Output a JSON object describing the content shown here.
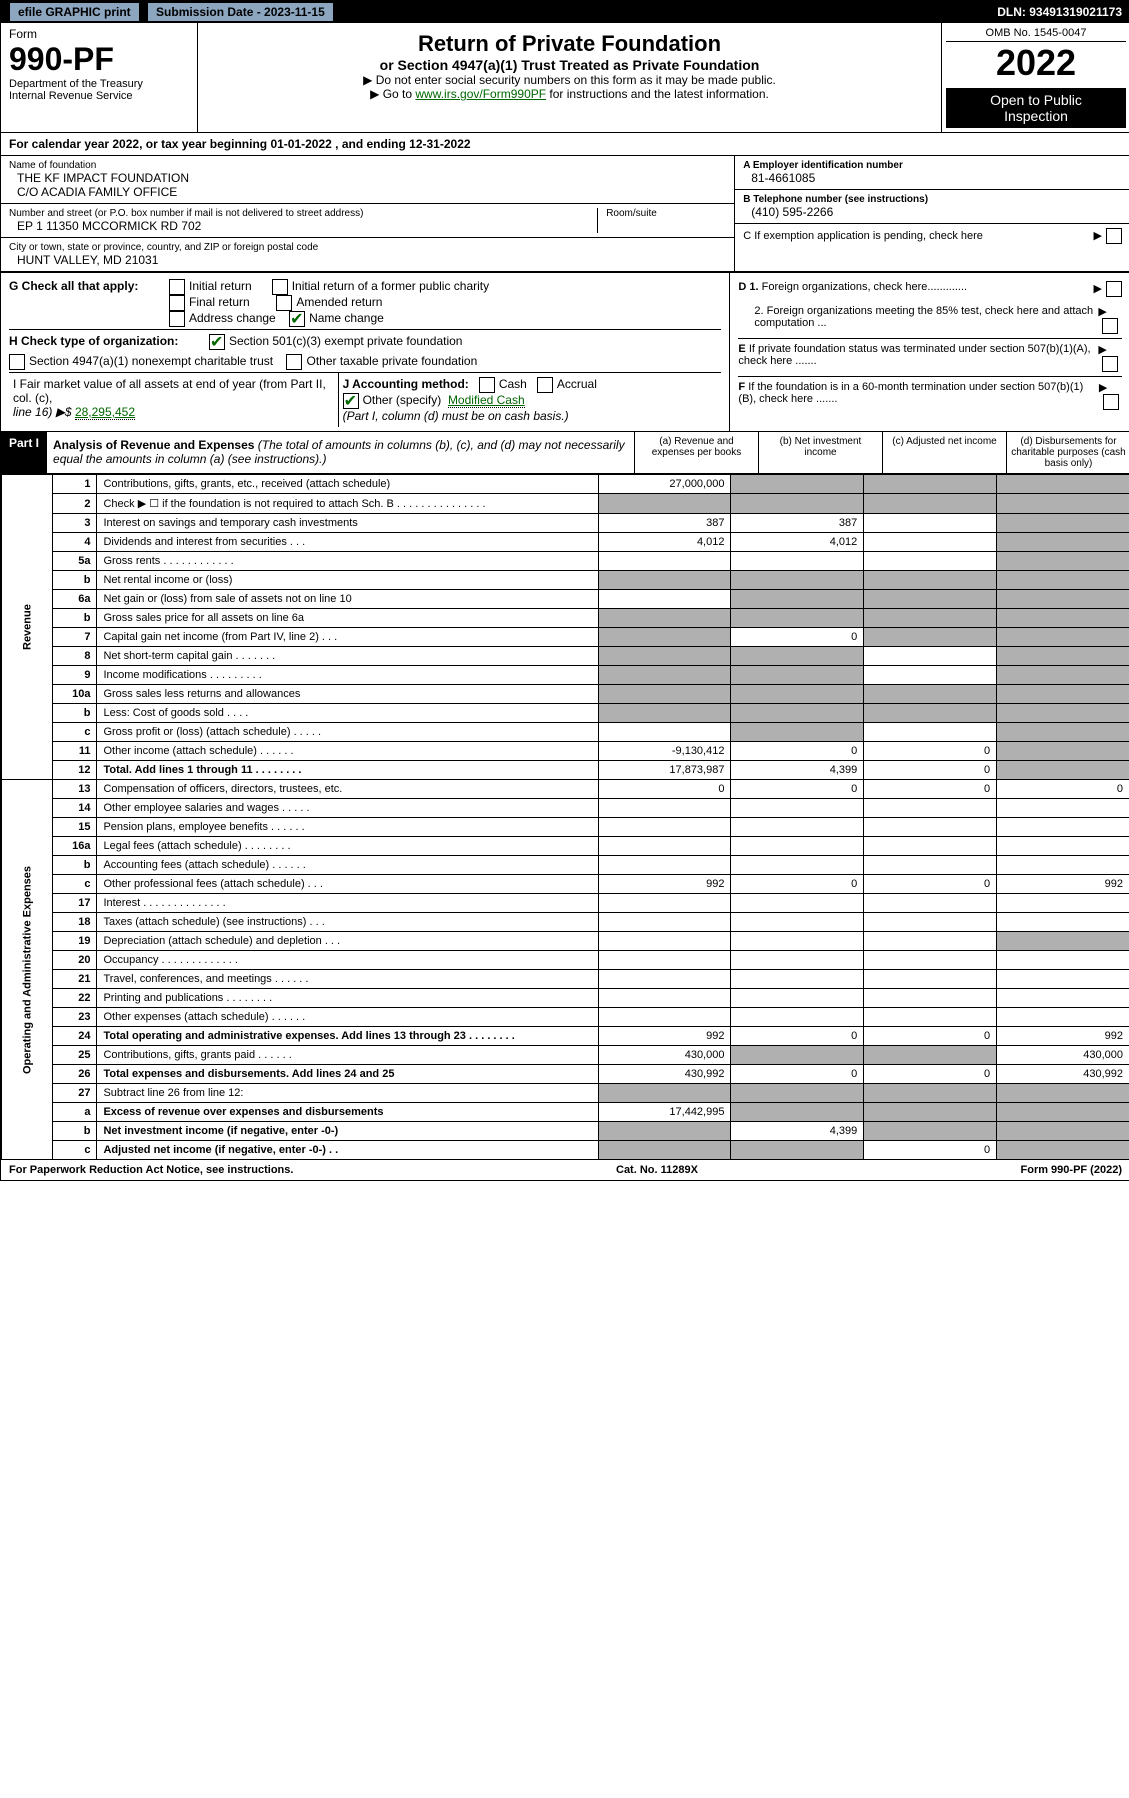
{
  "top_bar": {
    "efile": "efile GRAPHIC print",
    "submission_label": "Submission Date - 2023-11-15",
    "dln": "DLN: 93491319021173"
  },
  "header": {
    "form_label": "Form",
    "form_num": "990-PF",
    "dept1": "Department of the Treasury",
    "dept2": "Internal Revenue Service",
    "title": "Return of Private Foundation",
    "subtitle": "or Section 4947(a)(1) Trust Treated as Private Foundation",
    "inst1": "▶ Do not enter social security numbers on this form as it may be made public.",
    "inst2_pre": "▶ Go to ",
    "inst2_link": "www.irs.gov/Form990PF",
    "inst2_post": " for instructions and the latest information.",
    "omb": "OMB No. 1545-0047",
    "year": "2022",
    "inspection1": "Open to Public",
    "inspection2": "Inspection"
  },
  "cal_year": "For calendar year 2022, or tax year beginning 01-01-2022        , and ending 12-31-2022",
  "info": {
    "name_lbl": "Name of foundation",
    "name_val1": "THE KF IMPACT FOUNDATION",
    "name_val2": "C/O ACADIA FAMILY OFFICE",
    "ein_lbl": "A Employer identification number",
    "ein_val": "81-4661085",
    "addr_lbl": "Number and street (or P.O. box number if mail is not delivered to street address)",
    "addr_val": "EP 1 11350 MCCORMICK RD 702",
    "room_lbl": "Room/suite",
    "tel_lbl": "B Telephone number (see instructions)",
    "tel_val": "(410) 595-2266",
    "city_lbl": "City or town, state or province, country, and ZIP or foreign postal code",
    "city_val": "HUNT VALLEY, MD  21031",
    "c_lbl": "C If exemption application is pending, check here",
    "d1_lbl": "D 1. Foreign organizations, check here.............",
    "d2_lbl": "2. Foreign organizations meeting the 85% test, check here and attach computation ...",
    "e_lbl": "E If private foundation status was terminated under section 507(b)(1)(A), check here .......",
    "f_lbl": "F If the foundation is in a 60-month termination under section 507(b)(1)(B), check here .......",
    "g_lbl": "G Check all that apply:",
    "g_opts": {
      "initial": "Initial return",
      "initial_former": "Initial return of a former public charity",
      "final": "Final return",
      "amended": "Amended return",
      "address": "Address change",
      "name": "Name change"
    },
    "h_lbl": "H Check type of organization:",
    "h_501": "Section 501(c)(3) exempt private foundation",
    "h_4947": "Section 4947(a)(1) nonexempt charitable trust",
    "h_other": "Other taxable private foundation",
    "i_lbl": "I Fair market value of all assets at end of year (from Part II, col. (c),",
    "i_line": "line 16) ▶$ ",
    "i_val": "28,295,452",
    "j_lbl": "J Accounting method:",
    "j_cash": "Cash",
    "j_accrual": "Accrual",
    "j_other": "Other (specify)",
    "j_other_val": "Modified Cash",
    "j_note": "(Part I, column (d) must be on cash basis.)"
  },
  "part1": {
    "label": "Part I",
    "title": "Analysis of Revenue and Expenses",
    "title_note": " (The total of amounts in columns (b), (c), and (d) may not necessarily equal the amounts in column (a) (see instructions).)",
    "col_a": "(a)  Revenue and expenses per books",
    "col_b": "(b)  Net investment income",
    "col_c": "(c)  Adjusted net income",
    "col_d": "(d)  Disbursements for charitable purposes (cash basis only)"
  },
  "revenue_label": "Revenue",
  "expenses_label": "Operating and Administrative Expenses",
  "rows": [
    {
      "n": "1",
      "desc": "Contributions, gifts, grants, etc., received (attach schedule)",
      "a": "27,000,000",
      "b": "",
      "c": "",
      "d": "",
      "d_shade": true,
      "c_shade": true,
      "b_shade": true
    },
    {
      "n": "2",
      "desc": "Check ▶ ☐ if the foundation is not required to attach Sch. B  .  .  .  .  .  .  .  .  .  .  .  .  .  .  .",
      "a": "",
      "b": "",
      "c": "",
      "d": "",
      "a_shade": true,
      "b_shade": true,
      "c_shade": true,
      "d_shade": true
    },
    {
      "n": "3",
      "desc": "Interest on savings and temporary cash investments",
      "a": "387",
      "b": "387",
      "c": "",
      "d": "",
      "d_shade": true
    },
    {
      "n": "4",
      "desc": "Dividends and interest from securities  .  .  .",
      "a": "4,012",
      "b": "4,012",
      "c": "",
      "d": "",
      "d_shade": true
    },
    {
      "n": "5a",
      "desc": "Gross rents  .  .  .  .  .  .  .  .  .  .  .  .",
      "a": "",
      "b": "",
      "c": "",
      "d": "",
      "d_shade": true
    },
    {
      "n": "b",
      "desc": "Net rental income or (loss)",
      "a": "",
      "b": "",
      "c": "",
      "d": "",
      "a_shade": true,
      "b_shade": true,
      "c_shade": true,
      "d_shade": true
    },
    {
      "n": "6a",
      "desc": "Net gain or (loss) from sale of assets not on line 10",
      "a": "",
      "b": "",
      "c": "",
      "d": "",
      "b_shade": true,
      "c_shade": true,
      "d_shade": true
    },
    {
      "n": "b",
      "desc": "Gross sales price for all assets on line 6a",
      "a": "",
      "b": "",
      "c": "",
      "d": "",
      "a_shade": true,
      "b_shade": true,
      "c_shade": true,
      "d_shade": true
    },
    {
      "n": "7",
      "desc": "Capital gain net income (from Part IV, line 2)  .  .  .",
      "a": "",
      "b": "0",
      "c": "",
      "d": "",
      "a_shade": true,
      "c_shade": true,
      "d_shade": true
    },
    {
      "n": "8",
      "desc": "Net short-term capital gain  .  .  .  .  .  .  .",
      "a": "",
      "b": "",
      "c": "",
      "d": "",
      "a_shade": true,
      "b_shade": true,
      "d_shade": true
    },
    {
      "n": "9",
      "desc": "Income modifications  .  .  .  .  .  .  .  .  .",
      "a": "",
      "b": "",
      "c": "",
      "d": "",
      "a_shade": true,
      "b_shade": true,
      "d_shade": true
    },
    {
      "n": "10a",
      "desc": "Gross sales less returns and allowances",
      "a": "",
      "b": "",
      "c": "",
      "d": "",
      "a_shade": true,
      "b_shade": true,
      "c_shade": true,
      "d_shade": true
    },
    {
      "n": "b",
      "desc": "Less: Cost of goods sold  .  .  .  .",
      "a": "",
      "b": "",
      "c": "",
      "d": "",
      "a_shade": true,
      "b_shade": true,
      "c_shade": true,
      "d_shade": true
    },
    {
      "n": "c",
      "desc": "Gross profit or (loss) (attach schedule)  .  .  .  .  .",
      "a": "",
      "b": "",
      "c": "",
      "d": "",
      "b_shade": true,
      "d_shade": true
    },
    {
      "n": "11",
      "desc": "Other income (attach schedule)  .  .  .  .  .  .",
      "a": "-9,130,412",
      "b": "0",
      "c": "0",
      "d": "",
      "d_shade": true
    },
    {
      "n": "12",
      "desc": "Total. Add lines 1 through 11  .  .  .  .  .  .  .  .",
      "a": "17,873,987",
      "b": "4,399",
      "c": "0",
      "d": "",
      "d_shade": true,
      "bold": true
    }
  ],
  "exp_rows": [
    {
      "n": "13",
      "desc": "Compensation of officers, directors, trustees, etc.",
      "a": "0",
      "b": "0",
      "c": "0",
      "d": "0"
    },
    {
      "n": "14",
      "desc": "Other employee salaries and wages  .  .  .  .  .",
      "a": "",
      "b": "",
      "c": "",
      "d": ""
    },
    {
      "n": "15",
      "desc": "Pension plans, employee benefits  .  .  .  .  .  .",
      "a": "",
      "b": "",
      "c": "",
      "d": ""
    },
    {
      "n": "16a",
      "desc": "Legal fees (attach schedule)  .  .  .  .  .  .  .  .",
      "a": "",
      "b": "",
      "c": "",
      "d": ""
    },
    {
      "n": "b",
      "desc": "Accounting fees (attach schedule)  .  .  .  .  .  .",
      "a": "",
      "b": "",
      "c": "",
      "d": ""
    },
    {
      "n": "c",
      "desc": "Other professional fees (attach schedule)  .  .  .",
      "a": "992",
      "b": "0",
      "c": "0",
      "d": "992"
    },
    {
      "n": "17",
      "desc": "Interest .  .  .  .  .  .  .  .  .  .  .  .  .  .",
      "a": "",
      "b": "",
      "c": "",
      "d": ""
    },
    {
      "n": "18",
      "desc": "Taxes (attach schedule) (see instructions)  .  .  .",
      "a": "",
      "b": "",
      "c": "",
      "d": ""
    },
    {
      "n": "19",
      "desc": "Depreciation (attach schedule) and depletion  .  .  .",
      "a": "",
      "b": "",
      "c": "",
      "d": "",
      "d_shade": true
    },
    {
      "n": "20",
      "desc": "Occupancy .  .  .  .  .  .  .  .  .  .  .  .  .",
      "a": "",
      "b": "",
      "c": "",
      "d": ""
    },
    {
      "n": "21",
      "desc": "Travel, conferences, and meetings  .  .  .  .  .  .",
      "a": "",
      "b": "",
      "c": "",
      "d": ""
    },
    {
      "n": "22",
      "desc": "Printing and publications  .  .  .  .  .  .  .  .",
      "a": "",
      "b": "",
      "c": "",
      "d": ""
    },
    {
      "n": "23",
      "desc": "Other expenses (attach schedule)  .  .  .  .  .  .",
      "a": "",
      "b": "",
      "c": "",
      "d": ""
    },
    {
      "n": "24",
      "desc": "Total operating and administrative expenses. Add lines 13 through 23  .  .  .  .  .  .  .  .",
      "a": "992",
      "b": "0",
      "c": "0",
      "d": "992",
      "bold": true
    },
    {
      "n": "25",
      "desc": "Contributions, gifts, grants paid  .  .  .  .  .  .",
      "a": "430,000",
      "b": "",
      "c": "",
      "d": "430,000",
      "b_shade": true,
      "c_shade": true
    },
    {
      "n": "26",
      "desc": "Total expenses and disbursements. Add lines 24 and 25",
      "a": "430,992",
      "b": "0",
      "c": "0",
      "d": "430,992",
      "bold": true
    },
    {
      "n": "27",
      "desc": "Subtract line 26 from line 12:",
      "a": "",
      "b": "",
      "c": "",
      "d": "",
      "a_shade": true,
      "b_shade": true,
      "c_shade": true,
      "d_shade": true
    },
    {
      "n": "a",
      "desc": "Excess of revenue over expenses and disbursements",
      "a": "17,442,995",
      "b": "",
      "c": "",
      "d": "",
      "b_shade": true,
      "c_shade": true,
      "d_shade": true,
      "bold": true
    },
    {
      "n": "b",
      "desc": "Net investment income (if negative, enter -0-)",
      "a": "",
      "b": "4,399",
      "c": "",
      "d": "",
      "a_shade": true,
      "c_shade": true,
      "d_shade": true,
      "bold": true
    },
    {
      "n": "c",
      "desc": "Adjusted net income (if negative, enter -0-)  .  .",
      "a": "",
      "b": "",
      "c": "0",
      "d": "",
      "a_shade": true,
      "b_shade": true,
      "d_shade": true,
      "bold": true
    }
  ],
  "footer": {
    "left": "For Paperwork Reduction Act Notice, see instructions.",
    "center": "Cat. No. 11289X",
    "right": "Form 990-PF (2022)"
  }
}
